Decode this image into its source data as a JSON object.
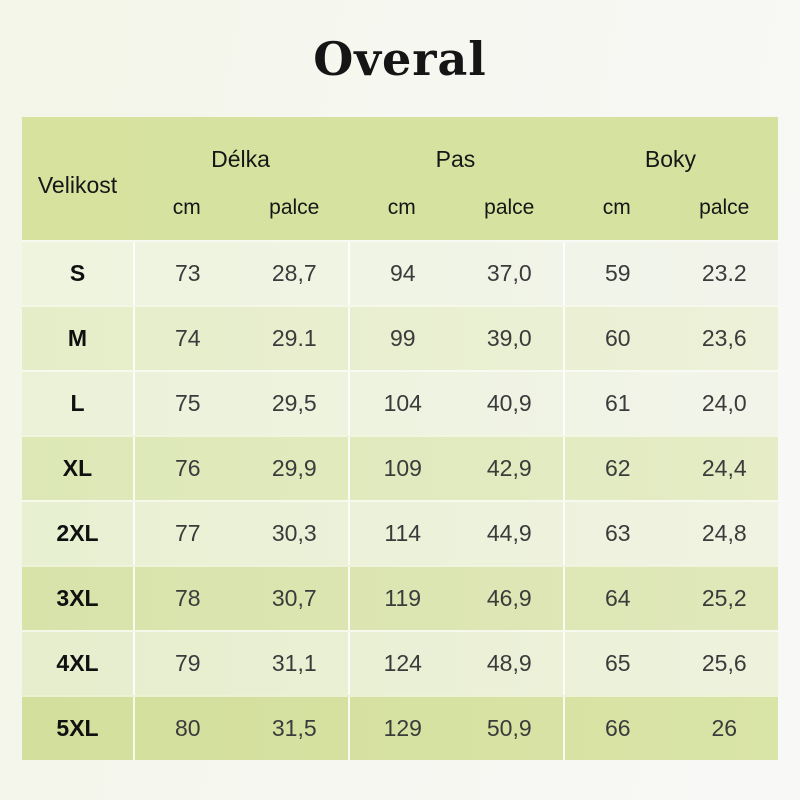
{
  "title": "Overal",
  "table_header": {
    "size_col": "Velikost",
    "groups": [
      {
        "label": "Délka",
        "sub1": "cm",
        "sub2": "palce"
      },
      {
        "label": "Pas",
        "sub1": "cm",
        "sub2": "palce"
      },
      {
        "label": "Boky",
        "sub1": "cm",
        "sub2": "palce"
      }
    ]
  },
  "chart_data": {
    "type": "table",
    "title": "Overal",
    "columns": [
      "Velikost",
      "Délka cm",
      "Délka palce",
      "Pas cm",
      "Pas palce",
      "Boky cm",
      "Boky palce"
    ],
    "rows": [
      {
        "size": "S",
        "values": [
          "73",
          "28,7",
          "94",
          "37,0",
          "59",
          "23.2"
        ]
      },
      {
        "size": "M",
        "values": [
          "74",
          "29.1",
          "99",
          "39,0",
          "60",
          "23,6"
        ]
      },
      {
        "size": "L",
        "values": [
          "75",
          "29,5",
          "104",
          "40,9",
          "61",
          "24,0"
        ]
      },
      {
        "size": "XL",
        "values": [
          "76",
          "29,9",
          "109",
          "42,9",
          "62",
          "24,4"
        ]
      },
      {
        "size": "2XL",
        "values": [
          "77",
          "30,3",
          "114",
          "44,9",
          "63",
          "24,8"
        ]
      },
      {
        "size": "3XL",
        "values": [
          "78",
          "30,7",
          "119",
          "46,9",
          "64",
          "25,2"
        ]
      },
      {
        "size": "4XL",
        "values": [
          "79",
          "31,1",
          "124",
          "48,9",
          "65",
          "25,6"
        ]
      },
      {
        "size": "5XL",
        "values": [
          "80",
          "31,5",
          "129",
          "50,9",
          "66",
          "26"
        ]
      }
    ]
  },
  "palette": {
    "header_green": "#d6e2a0",
    "text_dark": "#161616",
    "value_gray": "#3b3b3b",
    "page_bg_left": "#f3f6e8",
    "page_bg_right": "#f8f8f7"
  }
}
